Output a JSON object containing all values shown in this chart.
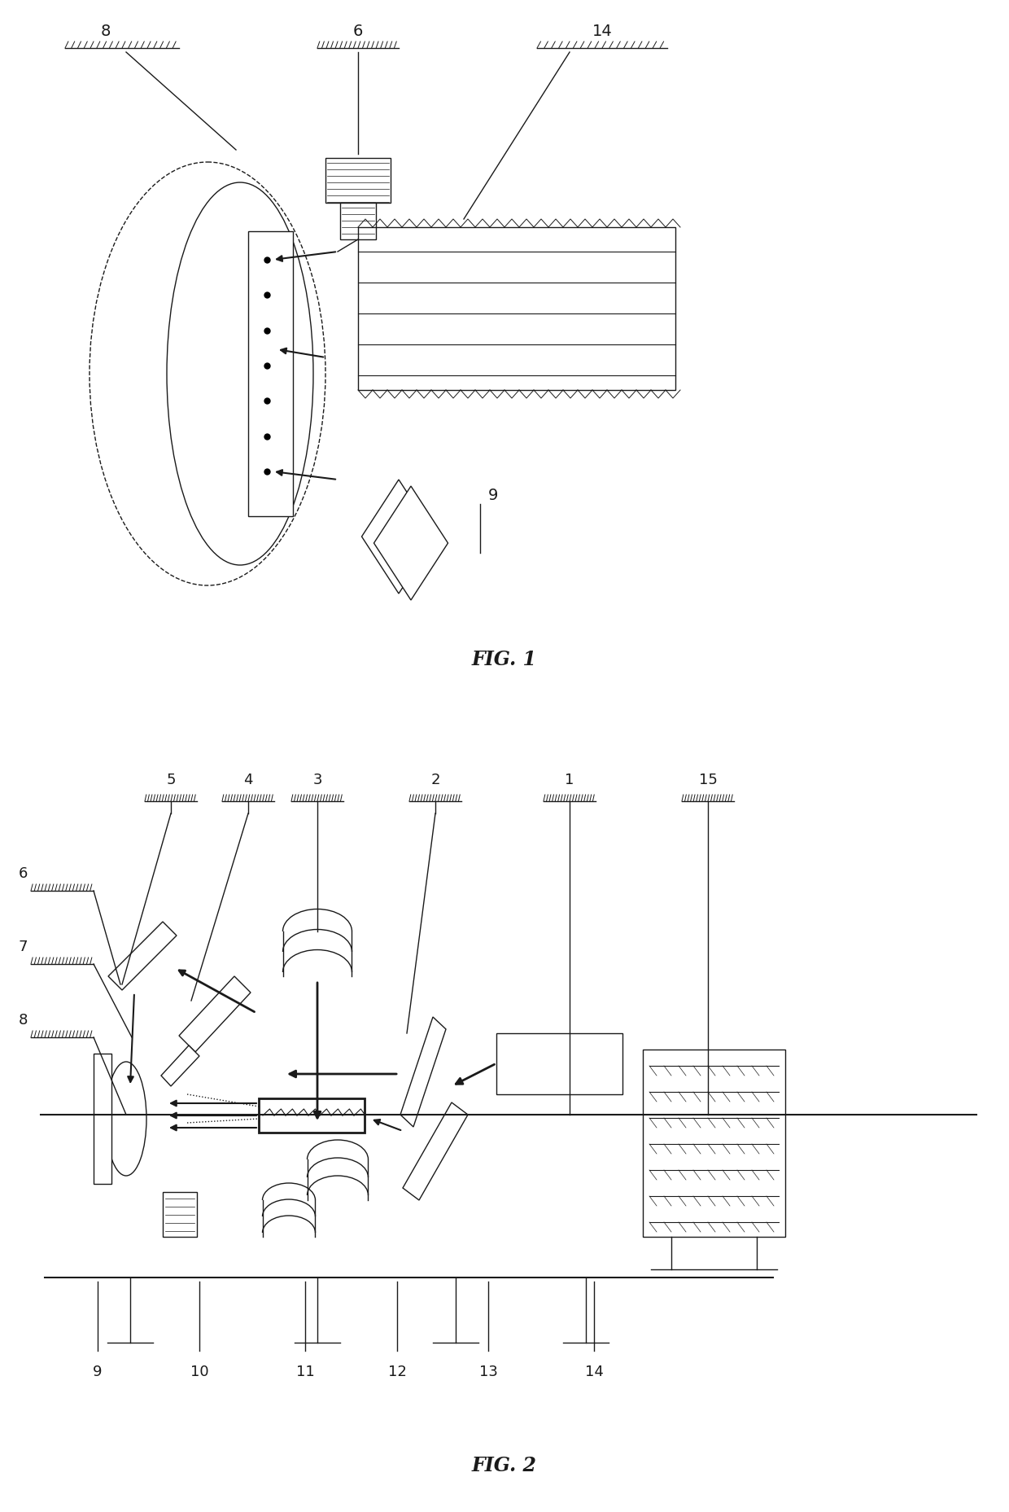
{
  "fig_title1": "FIG. 1",
  "fig_title2": "FIG. 2",
  "bg_color": "#ffffff",
  "line_color": "#1a1a1a",
  "gray_color": "#888888"
}
